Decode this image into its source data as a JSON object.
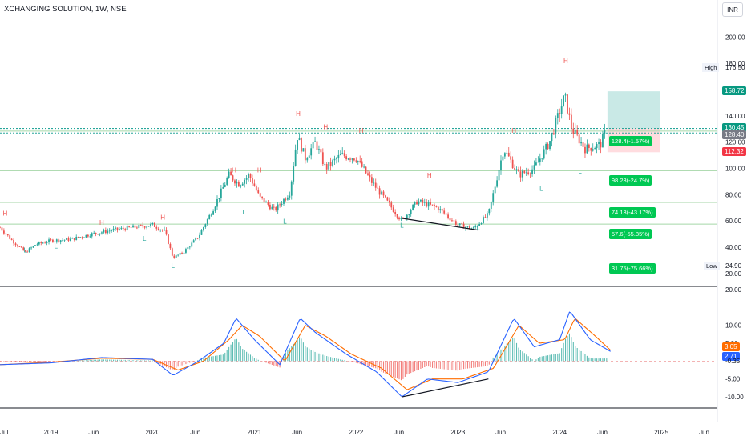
{
  "header": {
    "title": "XCHANGING SOLUTION, 1W, NSE",
    "currency_button": "INR"
  },
  "colors": {
    "up": "#26a69a",
    "down": "#ef5350",
    "level": "#00c853",
    "macd": "#2962ff",
    "signal": "#ff6d00",
    "target_zone": "#b2dfdb",
    "stop_zone": "#ffcdd2"
  },
  "price_axis": {
    "ticks": [
      "200.00",
      "180.00",
      "140.00",
      "120.00",
      "100.00",
      "80.00",
      "60.00",
      "40.00",
      "20.00"
    ]
  },
  "indicator_axis": {
    "ticks": [
      "20.00",
      "10.00",
      "5.00",
      "-5.00",
      "-10.00"
    ]
  },
  "time_axis": {
    "labels": [
      "Jul",
      "2019",
      "Jun",
      "2020",
      "Jun",
      "2021",
      "Jun",
      "2022",
      "Jun",
      "2023",
      "Jun",
      "2024",
      "Jun",
      "2025",
      "Jun"
    ]
  },
  "badges": {
    "target": "158.72",
    "entry": "130.45",
    "last": "128.40",
    "stop": "112.32",
    "high_label": "High",
    "high_value": "176.50",
    "low_label": "Low",
    "low_value": "24.90",
    "macd_signal": "3.05",
    "macd_line": "2.71",
    "histogram": "-0.35"
  },
  "levels": [
    {
      "text": "128.4(-1.57%)",
      "price": 128.4
    },
    {
      "text": "98.23(-24.7%)",
      "price": 98.23
    },
    {
      "text": "74.13(-43.17%)",
      "price": 74.13
    },
    {
      "text": "57.6(-55.85%)",
      "price": 57.6
    },
    {
      "text": "31.75(-75.66%)",
      "price": 31.75
    }
  ],
  "chart_data": {
    "type": "candlestick",
    "symbol": "XCHANGING SOLUTION",
    "interval": "1W",
    "exchange": "NSE",
    "price_range": [
      15,
      210
    ],
    "price_ticks": [
      200,
      180,
      140,
      120,
      100,
      80,
      60,
      40,
      20
    ],
    "high": 176.5,
    "low": 24.9,
    "target_zone": [
      130.45,
      158.72
    ],
    "stop_zone": [
      112.32,
      130.45
    ],
    "fib_levels": [
      128.4,
      98.23,
      74.13,
      57.6,
      31.75
    ],
    "close_path": [
      [
        2018.5,
        55
      ],
      [
        2018.62,
        45
      ],
      [
        2018.75,
        36
      ],
      [
        2018.85,
        42
      ],
      [
        2019.0,
        45
      ],
      [
        2019.2,
        46
      ],
      [
        2019.4,
        50
      ],
      [
        2019.6,
        53
      ],
      [
        2019.8,
        55
      ],
      [
        2020.0,
        57
      ],
      [
        2020.12,
        52
      ],
      [
        2020.2,
        32
      ],
      [
        2020.3,
        36
      ],
      [
        2020.45,
        48
      ],
      [
        2020.6,
        70
      ],
      [
        2020.75,
        95
      ],
      [
        2020.85,
        88
      ],
      [
        2020.95,
        95
      ],
      [
        2021.05,
        78
      ],
      [
        2021.2,
        68
      ],
      [
        2021.35,
        82
      ],
      [
        2021.42,
        125
      ],
      [
        2021.5,
        108
      ],
      [
        2021.6,
        120
      ],
      [
        2021.7,
        100
      ],
      [
        2021.85,
        110
      ],
      [
        2022.0,
        108
      ],
      [
        2022.15,
        90
      ],
      [
        2022.3,
        75
      ],
      [
        2022.45,
        60
      ],
      [
        2022.6,
        75
      ],
      [
        2022.8,
        70
      ],
      [
        2023.0,
        57
      ],
      [
        2023.15,
        54
      ],
      [
        2023.3,
        65
      ],
      [
        2023.45,
        115
      ],
      [
        2023.6,
        95
      ],
      [
        2023.75,
        100
      ],
      [
        2023.9,
        120
      ],
      [
        2024.05,
        155
      ],
      [
        2024.12,
        130
      ],
      [
        2024.25,
        115
      ],
      [
        2024.4,
        118
      ],
      [
        2024.45,
        128
      ]
    ],
    "pivot_labels": [
      {
        "t": "H",
        "x": 2018.55,
        "y": 64
      },
      {
        "t": "L",
        "x": 2018.75,
        "y": 36
      },
      {
        "t": "L",
        "x": 2019.05,
        "y": 39
      },
      {
        "t": "H",
        "x": 2019.5,
        "y": 57
      },
      {
        "t": "L",
        "x": 2019.92,
        "y": 45
      },
      {
        "t": "H",
        "x": 2020.1,
        "y": 61
      },
      {
        "t": "L",
        "x": 2020.2,
        "y": 24
      },
      {
        "t": "H",
        "x": 2020.8,
        "y": 97
      },
      {
        "t": "L",
        "x": 2020.9,
        "y": 65
      },
      {
        "t": "H",
        "x": 2021.05,
        "y": 97
      },
      {
        "t": "L",
        "x": 2021.3,
        "y": 58
      },
      {
        "t": "H",
        "x": 2021.43,
        "y": 140
      },
      {
        "t": "H",
        "x": 2021.7,
        "y": 130
      },
      {
        "t": "H",
        "x": 2022.05,
        "y": 127
      },
      {
        "t": "L",
        "x": 2022.45,
        "y": 55
      },
      {
        "t": "H",
        "x": 2022.72,
        "y": 93
      },
      {
        "t": "L",
        "x": 2023.2,
        "y": 53
      },
      {
        "t": "H",
        "x": 2023.55,
        "y": 127
      },
      {
        "t": "L",
        "x": 2023.82,
        "y": 83
      },
      {
        "t": "H",
        "x": 2024.06,
        "y": 180
      },
      {
        "t": "L",
        "x": 2024.2,
        "y": 96
      }
    ],
    "price_trendline": [
      [
        2022.45,
        62
      ],
      [
        2023.2,
        53
      ]
    ],
    "macd": {
      "range": [
        -12,
        20
      ],
      "ticks": [
        20,
        10,
        5,
        -5,
        -10
      ],
      "macd_line": [
        [
          2018.5,
          -1
        ],
        [
          2019.0,
          -0.5
        ],
        [
          2019.5,
          1
        ],
        [
          2020.0,
          0.5
        ],
        [
          2020.2,
          -4
        ],
        [
          2020.45,
          0
        ],
        [
          2020.7,
          5
        ],
        [
          2020.82,
          12
        ],
        [
          2021.0,
          6
        ],
        [
          2021.25,
          -1
        ],
        [
          2021.45,
          12
        ],
        [
          2021.6,
          8
        ],
        [
          2021.9,
          2
        ],
        [
          2022.2,
          -3
        ],
        [
          2022.45,
          -10
        ],
        [
          2022.7,
          -5
        ],
        [
          2023.0,
          -6
        ],
        [
          2023.3,
          -3
        ],
        [
          2023.55,
          12
        ],
        [
          2023.75,
          4
        ],
        [
          2024.0,
          6
        ],
        [
          2024.1,
          14
        ],
        [
          2024.3,
          6
        ],
        [
          2024.5,
          2.71
        ]
      ],
      "signal_line": [
        [
          2018.5,
          -1
        ],
        [
          2019.0,
          -0.3
        ],
        [
          2019.5,
          0.8
        ],
        [
          2020.0,
          0.5
        ],
        [
          2020.25,
          -2.5
        ],
        [
          2020.5,
          0
        ],
        [
          2020.75,
          6
        ],
        [
          2020.88,
          10
        ],
        [
          2021.05,
          7
        ],
        [
          2021.3,
          0
        ],
        [
          2021.5,
          10
        ],
        [
          2021.7,
          7
        ],
        [
          2021.95,
          2
        ],
        [
          2022.25,
          -2
        ],
        [
          2022.5,
          -8
        ],
        [
          2022.75,
          -5
        ],
        [
          2023.05,
          -5
        ],
        [
          2023.35,
          -2
        ],
        [
          2023.6,
          10
        ],
        [
          2023.8,
          5
        ],
        [
          2024.05,
          6
        ],
        [
          2024.15,
          12
        ],
        [
          2024.35,
          7
        ],
        [
          2024.5,
          3.05
        ]
      ],
      "trendline": [
        [
          2022.45,
          -10
        ],
        [
          2023.3,
          -5
        ]
      ]
    }
  }
}
